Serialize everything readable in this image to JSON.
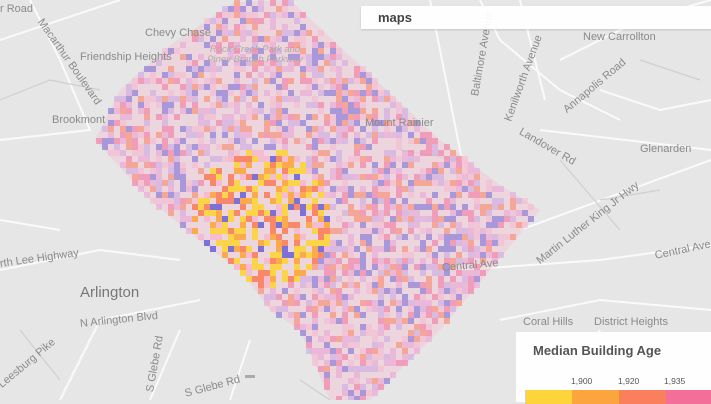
{
  "search": {
    "value": "maps"
  },
  "legend": {
    "title": "Median Building Age",
    "ticks": [
      "1,900",
      "1,920",
      "1,935"
    ],
    "colors": [
      "#fdd43a",
      "#fca53e",
      "#fa7f5d",
      "#f36f9a"
    ]
  },
  "map_labels": {
    "chevy_chase": "Chevy Chase",
    "friendship": "Friendship Heights",
    "rock_creek": "Rock Creek Park and Piney Branch Parkway",
    "macarthur": "Macarthur Boulevard",
    "brookmont": "Brookmont",
    "mount_rainier": "Mount Rainier",
    "new_carrollton": "New Carrollton",
    "baltimore": "Baltimore Avenue",
    "kenilworth": "Kenilworth Avenue",
    "annapolis": "Annapolis Road",
    "landover": "Landover Rd",
    "glenarden": "Glenarden",
    "mlk": "Martin Luther King Jr Hwy",
    "central1": "Central Ave",
    "central2": "Central Ave",
    "arlington": "Arlington",
    "lee_hwy": "rth Lee Highway",
    "n_arlington": "N Arlington Blvd",
    "leesburg": "Leesburg Pike",
    "glebe1": "S Glebe Rd",
    "glebe2": "S Glebe Rd",
    "coral_hills": "Coral Hills",
    "road": "r Road",
    "district_heights": "District Heights"
  }
}
